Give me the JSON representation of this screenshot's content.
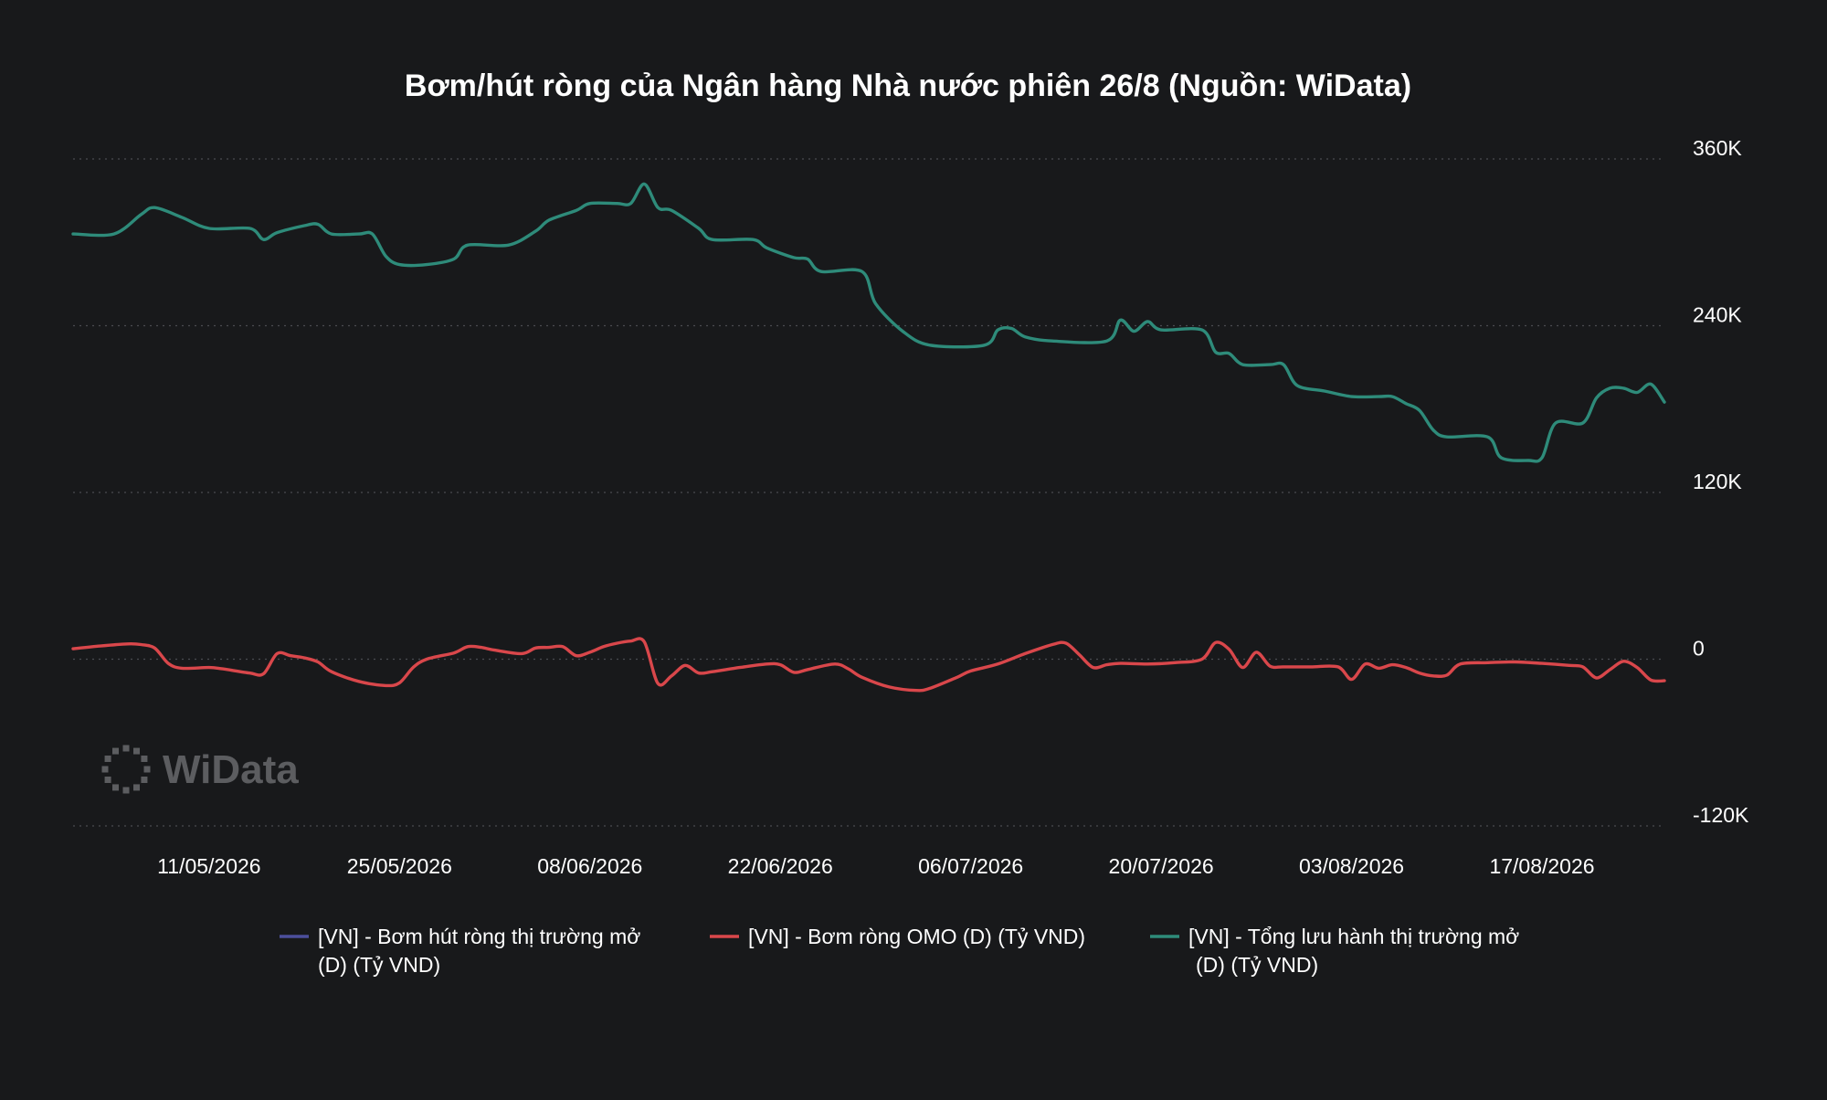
{
  "chart_data": {
    "type": "line",
    "title": "Bơm/hút ròng của Ngân hàng Nhà nước phiên 26/8 (Nguồn: WiData)",
    "y_ticks": [
      "360K",
      "240K",
      "120K",
      "0",
      "-120K"
    ],
    "ylim": [
      -120000,
      360000
    ],
    "y_axis_position": "right",
    "grid": true,
    "x_ticks": [
      "11/05/2026",
      "25/05/2026",
      "08/06/2026",
      "22/06/2026",
      "06/07/2026",
      "20/07/2026",
      "03/08/2026",
      "17/08/2026"
    ],
    "x_range": [
      "2026-05-01",
      "2026-08-26"
    ],
    "legend_position": "bottom",
    "watermark": "WiData",
    "series": [
      {
        "name": "[VN] - Bơm hút ròng thị trường mở (D) (Tỷ VND)",
        "legend_lines": [
          "[VN] - Bơm hút ròng thị trường mở",
          "(D) (Tỷ VND)"
        ],
        "color": "#4c4f9c",
        "points": []
      },
      {
        "name": "[VN] - Bơm ròng OMO (D) (Tỷ VND)",
        "legend_lines": [
          "[VN] - Bơm ròng OMO (D) (Tỷ VND)"
        ],
        "color": "#d9474b",
        "points": [
          [
            "2026-05-01",
            7500
          ],
          [
            "2026-05-03",
            9500
          ],
          [
            "2026-05-05",
            11000
          ],
          [
            "2026-05-06",
            10500
          ],
          [
            "2026-05-07",
            8000
          ],
          [
            "2026-05-08",
            -3000
          ],
          [
            "2026-05-09",
            -6500
          ],
          [
            "2026-05-11",
            -6000
          ],
          [
            "2026-05-12",
            -7000
          ],
          [
            "2026-05-14",
            -10000
          ],
          [
            "2026-05-15",
            -10500
          ],
          [
            "2026-05-16",
            4000
          ],
          [
            "2026-05-17",
            2500
          ],
          [
            "2026-05-18",
            1000
          ],
          [
            "2026-05-19",
            -2000
          ],
          [
            "2026-05-20",
            -9000
          ],
          [
            "2026-05-22",
            -16000
          ],
          [
            "2026-05-24",
            -19000
          ],
          [
            "2026-05-25",
            -17000
          ],
          [
            "2026-05-26",
            -6000
          ],
          [
            "2026-05-27",
            0
          ],
          [
            "2026-05-29",
            4500
          ],
          [
            "2026-05-30",
            9000
          ],
          [
            "2026-05-31",
            8500
          ],
          [
            "2026-06-01",
            6500
          ],
          [
            "2026-06-03",
            4000
          ],
          [
            "2026-06-04",
            8000
          ],
          [
            "2026-06-05",
            8500
          ],
          [
            "2026-06-06",
            9000
          ],
          [
            "2026-06-07",
            2500
          ],
          [
            "2026-06-08",
            5000
          ],
          [
            "2026-06-09",
            9000
          ],
          [
            "2026-06-10",
            11500
          ],
          [
            "2026-06-11",
            13000
          ],
          [
            "2026-06-12",
            12500
          ],
          [
            "2026-06-13",
            -17500
          ],
          [
            "2026-06-14",
            -12000
          ],
          [
            "2026-06-15",
            -4500
          ],
          [
            "2026-06-16",
            -10000
          ],
          [
            "2026-06-17",
            -9000
          ],
          [
            "2026-06-19",
            -6000
          ],
          [
            "2026-06-21",
            -3500
          ],
          [
            "2026-06-22",
            -4000
          ],
          [
            "2026-06-23",
            -9500
          ],
          [
            "2026-06-24",
            -7500
          ],
          [
            "2026-06-26",
            -3500
          ],
          [
            "2026-06-27",
            -7000
          ],
          [
            "2026-06-28",
            -13000
          ],
          [
            "2026-06-30",
            -20000
          ],
          [
            "2026-07-02",
            -22500
          ],
          [
            "2026-07-03",
            -21000
          ],
          [
            "2026-07-05",
            -13000
          ],
          [
            "2026-07-06",
            -8500
          ],
          [
            "2026-07-08",
            -3500
          ],
          [
            "2026-07-10",
            4000
          ],
          [
            "2026-07-12",
            10500
          ],
          [
            "2026-07-13",
            11500
          ],
          [
            "2026-07-14",
            3000
          ],
          [
            "2026-07-15",
            -6000
          ],
          [
            "2026-07-16",
            -4000
          ],
          [
            "2026-07-17",
            -3000
          ],
          [
            "2026-07-19",
            -3500
          ],
          [
            "2026-07-21",
            -2500
          ],
          [
            "2026-07-23",
            0
          ],
          [
            "2026-07-24",
            12000
          ],
          [
            "2026-07-25",
            7000
          ],
          [
            "2026-07-26",
            -6000
          ],
          [
            "2026-07-27",
            5000
          ],
          [
            "2026-07-28",
            -5000
          ],
          [
            "2026-07-29",
            -5500
          ],
          [
            "2026-07-31",
            -5500
          ],
          [
            "2026-08-02",
            -5500
          ],
          [
            "2026-08-03",
            -14500
          ],
          [
            "2026-08-04",
            -3500
          ],
          [
            "2026-08-05",
            -6500
          ],
          [
            "2026-08-06",
            -4000
          ],
          [
            "2026-08-07",
            -6000
          ],
          [
            "2026-08-08",
            -10000
          ],
          [
            "2026-08-09",
            -12000
          ],
          [
            "2026-08-10",
            -11500
          ],
          [
            "2026-08-11",
            -3500
          ],
          [
            "2026-08-13",
            -2500
          ],
          [
            "2026-08-15",
            -2000
          ],
          [
            "2026-08-17",
            -3000
          ],
          [
            "2026-08-19",
            -4500
          ],
          [
            "2026-08-20",
            -5500
          ],
          [
            "2026-08-21",
            -13500
          ],
          [
            "2026-08-22",
            -7500
          ],
          [
            "2026-08-23",
            -1500
          ],
          [
            "2026-08-24",
            -6000
          ],
          [
            "2026-08-25",
            -15000
          ],
          [
            "2026-08-26",
            -15500
          ]
        ]
      },
      {
        "name": "[VN] - Tổng lưu hành thị trường mở (D) (Tỷ VND)",
        "legend_lines": [
          "[VN] - Tổng lưu hành thị trường mở",
          "(D) (Tỷ VND)"
        ],
        "color": "#2e8b7a",
        "points": [
          [
            "2026-05-01",
            306000
          ],
          [
            "2026-05-04",
            306000
          ],
          [
            "2026-05-06",
            320000
          ],
          [
            "2026-05-07",
            325000
          ],
          [
            "2026-05-09",
            318000
          ],
          [
            "2026-05-11",
            310000
          ],
          [
            "2026-05-14",
            310000
          ],
          [
            "2026-05-15",
            302000
          ],
          [
            "2026-05-16",
            307000
          ],
          [
            "2026-05-18",
            312000
          ],
          [
            "2026-05-19",
            313000
          ],
          [
            "2026-05-20",
            306000
          ],
          [
            "2026-05-22",
            306000
          ],
          [
            "2026-05-23",
            306000
          ],
          [
            "2026-05-24",
            290000
          ],
          [
            "2026-05-25",
            284000
          ],
          [
            "2026-05-27",
            284000
          ],
          [
            "2026-05-29",
            288000
          ],
          [
            "2026-05-30",
            298000
          ],
          [
            "2026-06-02",
            298000
          ],
          [
            "2026-06-04",
            308000
          ],
          [
            "2026-06-05",
            316000
          ],
          [
            "2026-06-07",
            323000
          ],
          [
            "2026-06-08",
            328000
          ],
          [
            "2026-06-10",
            328000
          ],
          [
            "2026-06-11",
            328000
          ],
          [
            "2026-06-12",
            342000
          ],
          [
            "2026-06-13",
            325000
          ],
          [
            "2026-06-14",
            323000
          ],
          [
            "2026-06-16",
            310000
          ],
          [
            "2026-06-17",
            302000
          ],
          [
            "2026-06-20",
            302000
          ],
          [
            "2026-06-21",
            296000
          ],
          [
            "2026-06-23",
            289000
          ],
          [
            "2026-06-24",
            288000
          ],
          [
            "2026-06-25",
            279000
          ],
          [
            "2026-06-28",
            279000
          ],
          [
            "2026-06-29",
            256000
          ],
          [
            "2026-07-01",
            236000
          ],
          [
            "2026-07-03",
            226000
          ],
          [
            "2026-07-07",
            226000
          ],
          [
            "2026-07-08",
            237000
          ],
          [
            "2026-07-09",
            238000
          ],
          [
            "2026-07-10",
            232000
          ],
          [
            "2026-07-12",
            229000
          ],
          [
            "2026-07-16",
            229000
          ],
          [
            "2026-07-17",
            244000
          ],
          [
            "2026-07-18",
            236000
          ],
          [
            "2026-07-19",
            243000
          ],
          [
            "2026-07-20",
            237000
          ],
          [
            "2026-07-23",
            237000
          ],
          [
            "2026-07-24",
            221000
          ],
          [
            "2026-07-25",
            220000
          ],
          [
            "2026-07-26",
            212000
          ],
          [
            "2026-07-28",
            212000
          ],
          [
            "2026-07-29",
            212000
          ],
          [
            "2026-07-30",
            197000
          ],
          [
            "2026-08-01",
            193000
          ],
          [
            "2026-08-03",
            189000
          ],
          [
            "2026-08-05",
            189000
          ],
          [
            "2026-08-06",
            189000
          ],
          [
            "2026-08-07",
            184000
          ],
          [
            "2026-08-08",
            179000
          ],
          [
            "2026-08-09",
            165000
          ],
          [
            "2026-08-10",
            160000
          ],
          [
            "2026-08-13",
            160000
          ],
          [
            "2026-08-14",
            145000
          ],
          [
            "2026-08-16",
            143000
          ],
          [
            "2026-08-17",
            145000
          ],
          [
            "2026-08-18",
            170000
          ],
          [
            "2026-08-20",
            170000
          ],
          [
            "2026-08-21",
            188000
          ],
          [
            "2026-08-22",
            195000
          ],
          [
            "2026-08-23",
            195000
          ],
          [
            "2026-08-24",
            192000
          ],
          [
            "2026-08-25",
            198000
          ],
          [
            "2026-08-26",
            185000
          ]
        ]
      }
    ]
  }
}
